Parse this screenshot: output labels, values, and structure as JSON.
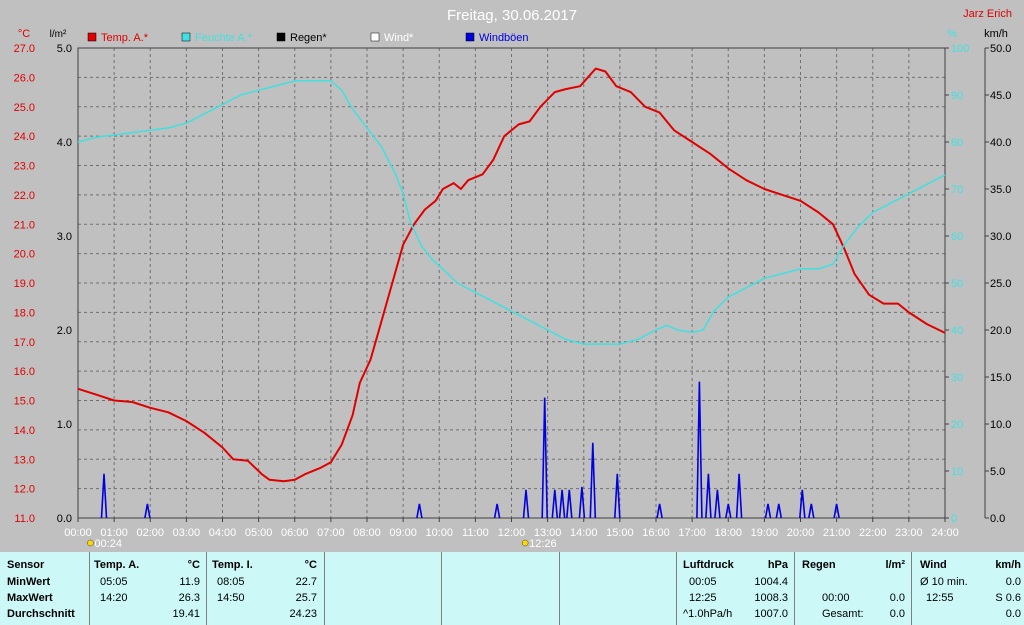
{
  "header": {
    "title": "Freitag, 30.06.2017",
    "author": "Jarz Erich",
    "unit_left_temp": "°C",
    "unit_left_rain": "l/m²",
    "unit_right_pct": "%",
    "unit_right_wind": "km/h"
  },
  "legend": [
    {
      "label": "Temp. A.*",
      "color": "#e00000"
    },
    {
      "label": "Feuchte A.*",
      "color": "#40e0e0"
    },
    {
      "label": "Regen*",
      "color": "#000000"
    },
    {
      "label": "Wind*",
      "color": "#ffffff"
    },
    {
      "label": "Windböen",
      "color": "#0000e0"
    }
  ],
  "markers": {
    "sunrise": "00:24",
    "sunset": "12:26"
  },
  "chart_data": {
    "type": "line",
    "title": "Freitag, 30.06.2017",
    "x_ticks": [
      "00:00",
      "01:00",
      "02:00",
      "03:00",
      "04:00",
      "05:00",
      "06:00",
      "07:00",
      "08:00",
      "09:00",
      "10:00",
      "11:00",
      "12:00",
      "13:00",
      "14:00",
      "15:00",
      "16:00",
      "17:00",
      "18:00",
      "19:00",
      "20:00",
      "21:00",
      "22:00",
      "23:00",
      "24:00"
    ],
    "temp_ticks": [
      "27.0",
      "26.0",
      "25.0",
      "24.0",
      "23.0",
      "22.0",
      "21.0",
      "20.0",
      "19.0",
      "18.0",
      "17.0",
      "16.0",
      "15.0",
      "14.0",
      "13.0",
      "12.0",
      "11.0"
    ],
    "rain_ticks": [
      "5.0",
      "4.0",
      "3.0",
      "2.0",
      "1.0",
      "0.0"
    ],
    "pct_ticks": [
      "100",
      "90",
      "80",
      "70",
      "60",
      "50",
      "40",
      "30",
      "20",
      "10",
      "0"
    ],
    "wind_ticks": [
      "50.0",
      "45.0",
      "40.0",
      "35.0",
      "30.0",
      "25.0",
      "20.0",
      "15.0",
      "10.0",
      "5.0",
      "0.0"
    ],
    "temp_range": [
      11,
      27
    ],
    "pct_range": [
      0,
      100
    ],
    "wind_range": [
      0,
      50
    ],
    "grid": true,
    "series": [
      {
        "name": "Temp. A.*",
        "axis": "temp",
        "color": "#e00000",
        "points": [
          [
            0,
            15.4
          ],
          [
            0.5,
            15.2
          ],
          [
            1,
            15.0
          ],
          [
            1.5,
            14.95
          ],
          [
            2,
            14.75
          ],
          [
            2.5,
            14.6
          ],
          [
            3,
            14.3
          ],
          [
            3.5,
            13.9
          ],
          [
            4,
            13.4
          ],
          [
            4.3,
            13.0
          ],
          [
            4.7,
            12.95
          ],
          [
            5.08,
            12.5
          ],
          [
            5.3,
            12.3
          ],
          [
            5.7,
            12.25
          ],
          [
            6,
            12.3
          ],
          [
            6.3,
            12.5
          ],
          [
            6.7,
            12.7
          ],
          [
            7,
            12.9
          ],
          [
            7.3,
            13.5
          ],
          [
            7.6,
            14.5
          ],
          [
            7.8,
            15.6
          ],
          [
            8.1,
            16.4
          ],
          [
            8.4,
            17.7
          ],
          [
            8.7,
            19.0
          ],
          [
            9.0,
            20.3
          ],
          [
            9.3,
            21.0
          ],
          [
            9.6,
            21.5
          ],
          [
            9.9,
            21.8
          ],
          [
            10.1,
            22.2
          ],
          [
            10.4,
            22.4
          ],
          [
            10.6,
            22.2
          ],
          [
            10.8,
            22.5
          ],
          [
            11.2,
            22.7
          ],
          [
            11.5,
            23.2
          ],
          [
            11.8,
            24.0
          ],
          [
            12.2,
            24.4
          ],
          [
            12.5,
            24.5
          ],
          [
            12.8,
            25.0
          ],
          [
            13.2,
            25.5
          ],
          [
            13.5,
            25.6
          ],
          [
            13.9,
            25.7
          ],
          [
            14.33,
            26.3
          ],
          [
            14.6,
            26.2
          ],
          [
            14.9,
            25.7
          ],
          [
            15.3,
            25.5
          ],
          [
            15.7,
            25.0
          ],
          [
            16.1,
            24.8
          ],
          [
            16.5,
            24.2
          ],
          [
            17.0,
            23.8
          ],
          [
            17.5,
            23.4
          ],
          [
            18,
            22.9
          ],
          [
            18.5,
            22.5
          ],
          [
            19,
            22.2
          ],
          [
            19.5,
            22.0
          ],
          [
            20,
            21.8
          ],
          [
            20.5,
            21.4
          ],
          [
            20.9,
            21.0
          ],
          [
            21.2,
            20.2
          ],
          [
            21.5,
            19.3
          ],
          [
            21.9,
            18.6
          ],
          [
            22.3,
            18.3
          ],
          [
            22.7,
            18.3
          ],
          [
            23.0,
            18.0
          ],
          [
            23.5,
            17.6
          ],
          [
            24,
            17.3
          ]
        ]
      },
      {
        "name": "Feuchte A.*",
        "axis": "pct",
        "color": "#40e0e0",
        "points": [
          [
            0,
            80
          ],
          [
            0.5,
            81
          ],
          [
            1,
            81.5
          ],
          [
            1.5,
            82
          ],
          [
            2,
            82.5
          ],
          [
            2.5,
            83
          ],
          [
            3,
            84
          ],
          [
            3.5,
            86
          ],
          [
            4,
            88
          ],
          [
            4.5,
            90
          ],
          [
            5,
            91
          ],
          [
            5.5,
            92
          ],
          [
            6,
            93
          ],
          [
            6.5,
            93
          ],
          [
            7,
            93
          ],
          [
            7.3,
            91
          ],
          [
            7.6,
            87
          ],
          [
            8,
            83
          ],
          [
            8.4,
            79
          ],
          [
            8.8,
            73
          ],
          [
            9.0,
            69
          ],
          [
            9.2,
            63
          ],
          [
            9.5,
            58
          ],
          [
            9.8,
            55
          ],
          [
            10.1,
            53
          ],
          [
            10.5,
            50
          ],
          [
            11,
            48
          ],
          [
            11.5,
            46
          ],
          [
            12,
            44
          ],
          [
            12.5,
            42
          ],
          [
            13,
            40
          ],
          [
            13.5,
            38
          ],
          [
            14,
            37
          ],
          [
            14.5,
            37
          ],
          [
            15,
            37
          ],
          [
            15.5,
            38
          ],
          [
            16,
            40
          ],
          [
            16.3,
            41
          ],
          [
            16.6,
            40
          ],
          [
            17.0,
            39.5
          ],
          [
            17.3,
            40
          ],
          [
            17.6,
            44
          ],
          [
            18,
            47
          ],
          [
            18.5,
            49
          ],
          [
            19,
            51
          ],
          [
            19.5,
            52
          ],
          [
            20,
            53
          ],
          [
            20.5,
            53
          ],
          [
            20.9,
            54
          ],
          [
            21.2,
            58
          ],
          [
            21.6,
            62
          ],
          [
            22,
            65
          ],
          [
            22.5,
            67
          ],
          [
            23,
            69
          ],
          [
            23.5,
            71
          ],
          [
            24,
            73
          ]
        ]
      },
      {
        "name": "Windböen",
        "axis": "wind",
        "color": "#0000e0",
        "spikes": [
          [
            0.72,
            4.7
          ],
          [
            1.92,
            1.5
          ],
          [
            9.45,
            1.5
          ],
          [
            11.6,
            1.5
          ],
          [
            12.4,
            3.0
          ],
          [
            12.92,
            12.8
          ],
          [
            13.2,
            3.0
          ],
          [
            13.4,
            3.0
          ],
          [
            13.6,
            3.0
          ],
          [
            13.95,
            3.3
          ],
          [
            14.25,
            8.0
          ],
          [
            14.93,
            4.7
          ],
          [
            16.1,
            1.5
          ],
          [
            17.2,
            14.5
          ],
          [
            17.45,
            4.7
          ],
          [
            17.7,
            3.0
          ],
          [
            18.0,
            1.5
          ],
          [
            18.3,
            4.7
          ],
          [
            19.1,
            1.5
          ],
          [
            19.4,
            1.5
          ],
          [
            20.05,
            3.0
          ],
          [
            20.3,
            1.5
          ],
          [
            21.0,
            1.5
          ]
        ]
      }
    ]
  },
  "stats": {
    "sensor_label": "Sensor",
    "min_label": "MinWert",
    "max_label": "MaxWert",
    "avg_label": "Durchschnitt",
    "temp_a": {
      "title": "Temp. A.",
      "unit": "°C",
      "min_time": "05:05",
      "min_val": "11.9",
      "max_time": "14:20",
      "max_val": "26.3",
      "avg": "19.41"
    },
    "temp_i": {
      "title": "Temp. I.",
      "unit": "°C",
      "min_time": "08:05",
      "min_val": "22.7",
      "max_time": "14:50",
      "max_val": "25.7",
      "avg": "24.23"
    },
    "pressure": {
      "title": "Luftdruck",
      "unit": "hPa",
      "r1_time": "00:05",
      "r1_val": "1004.4",
      "r2_time": "12:25",
      "r2_val": "1008.3",
      "r3_label": "^1.0hPa/h",
      "r3_val": "1007.0"
    },
    "rain": {
      "title": "Regen",
      "unit": "l/m²",
      "r2_time": "00:00",
      "r2_val": "0.0",
      "r3_label": "Gesamt:",
      "r3_val": "0.0"
    },
    "wind": {
      "title": "Wind",
      "unit": "km/h",
      "r1_label": "Ø 10 min.",
      "r1_val": "0.0",
      "r2_time": "12:55",
      "r2_val": "S 0.6",
      "r3_val": "0.0"
    }
  }
}
